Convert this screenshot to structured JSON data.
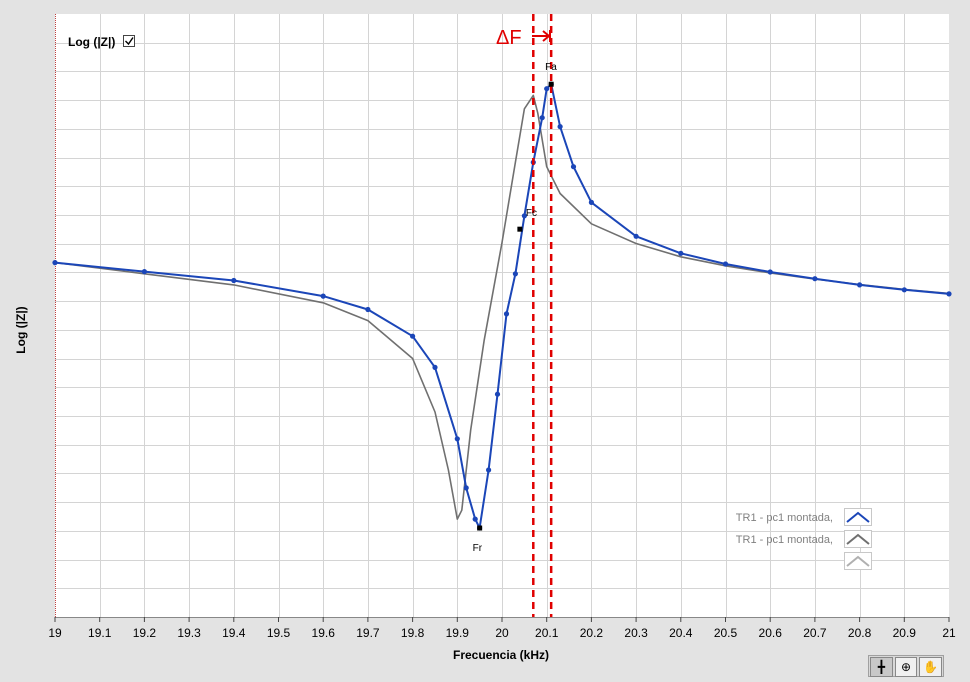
{
  "chart_data": {
    "type": "line",
    "xlabel": "Frecuencia (kHz)",
    "ylabel": "Log (|Z|)",
    "xlim": [
      19,
      21
    ],
    "x_ticks": [
      "19",
      "19.1",
      "19.2",
      "19.3",
      "19.4",
      "19.5",
      "19.6",
      "19.7",
      "19.8",
      "19.9",
      "20",
      "20.1",
      "20.2",
      "20.3",
      "20.4",
      "20.5",
      "20.6",
      "20.7",
      "20.8",
      "20.9",
      "21"
    ],
    "y_ticks_shown": false,
    "grid": true,
    "checkbox_label": "Log (|Z|)",
    "checkbox_checked": true,
    "series": [
      {
        "name": "TR1 - pc1 montada,",
        "color": "#1b46b8",
        "markers": true,
        "x": [
          19.0,
          19.2,
          19.4,
          19.6,
          19.7,
          19.8,
          19.85,
          19.9,
          19.92,
          19.94,
          19.95,
          19.97,
          19.99,
          20.01,
          20.03,
          20.05,
          20.07,
          20.09,
          20.1,
          20.11,
          20.13,
          20.16,
          20.2,
          20.3,
          20.4,
          20.5,
          20.6,
          20.7,
          20.8,
          20.9,
          21.0
        ],
        "y": [
          0.595,
          0.575,
          0.555,
          0.52,
          0.49,
          0.43,
          0.36,
          0.2,
          0.09,
          0.02,
          0.0,
          0.13,
          0.3,
          0.48,
          0.57,
          0.7,
          0.82,
          0.92,
          0.985,
          0.995,
          0.9,
          0.81,
          0.73,
          0.654,
          0.616,
          0.592,
          0.574,
          0.559,
          0.545,
          0.534,
          0.525
        ]
      },
      {
        "name": "TR1 - pc1 montada,",
        "color": "#707070",
        "markers": false,
        "x": [
          19.0,
          19.2,
          19.4,
          19.6,
          19.7,
          19.8,
          19.85,
          19.88,
          19.9,
          19.91,
          19.93,
          19.96,
          20.0,
          20.03,
          20.05,
          20.07,
          20.08,
          20.1,
          20.13,
          20.2,
          20.3,
          20.4,
          20.5,
          20.6,
          20.7,
          20.8,
          20.9,
          21.0
        ],
        "y": [
          0.595,
          0.57,
          0.545,
          0.505,
          0.465,
          0.38,
          0.26,
          0.13,
          0.02,
          0.04,
          0.22,
          0.42,
          0.64,
          0.82,
          0.94,
          0.97,
          0.93,
          0.81,
          0.75,
          0.682,
          0.638,
          0.608,
          0.588,
          0.572,
          0.558,
          0.546,
          0.535,
          0.526
        ]
      }
    ],
    "legend_extra_entry_color": "#b0b0b0",
    "legend_position": "bottom-right",
    "point_labels": [
      {
        "label": "Fa",
        "x": 20.11,
        "y": 0.995
      },
      {
        "label": "Fc",
        "x": 20.04,
        "y": 0.67
      },
      {
        "label": "Fr",
        "x": 19.95,
        "y": 0.0
      }
    ],
    "reference_lines": [
      {
        "x": 20.07,
        "color": "#e00000",
        "style": "dashed"
      },
      {
        "x": 20.11,
        "color": "#e00000",
        "style": "dashed"
      }
    ],
    "delta_annotation": "ΔF"
  },
  "toolbar": {
    "buttons": [
      {
        "icon": "crosshair-icon",
        "glyph": "╋"
      },
      {
        "icon": "zoom-icon",
        "glyph": "⊕"
      },
      {
        "icon": "pan-hand-icon",
        "glyph": "✋"
      }
    ]
  }
}
